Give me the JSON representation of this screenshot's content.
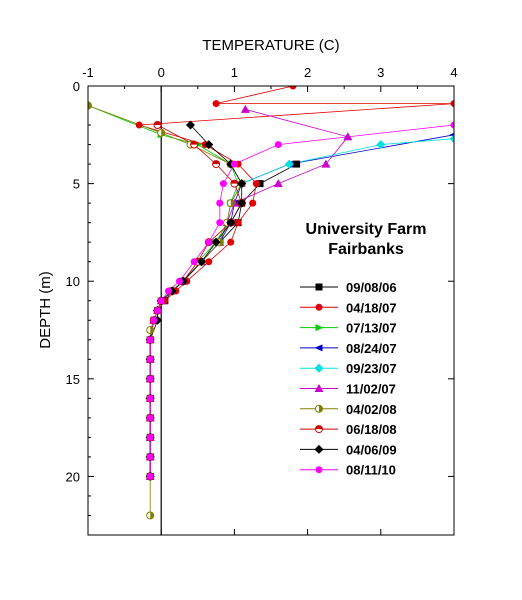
{
  "chart_data": {
    "type": "line",
    "title": "",
    "xlabel": "TEMPERATURE (C)",
    "ylabel": "DEPTH (m)",
    "xlim": [
      -1,
      4
    ],
    "ylim": [
      0,
      23
    ],
    "y_inverted": true,
    "x_axis_position": "top",
    "x_ticks": [
      -1,
      0,
      1,
      2,
      3,
      4
    ],
    "y_ticks": [
      0,
      5,
      10,
      15,
      20
    ],
    "zero_reference_line": true,
    "grid": false,
    "legend_title": [
      "University Farm",
      "Fairbanks"
    ],
    "legend_position": "right",
    "series": [
      {
        "name": "09/08/06",
        "color": "#000000",
        "marker": "square",
        "points": [
          [
            1.85,
            4.0
          ],
          [
            1.35,
            5.0
          ],
          [
            1.1,
            6.0
          ],
          [
            1.05,
            7.0
          ],
          [
            0.8,
            8.0
          ],
          [
            0.55,
            9.0
          ],
          [
            0.3,
            10.0
          ],
          [
            0.15,
            10.5
          ],
          [
            0.05,
            11.0
          ],
          [
            -0.05,
            11.5
          ],
          [
            -0.1,
            12.0
          ],
          [
            -0.15,
            13.0
          ],
          [
            -0.15,
            14.0
          ],
          [
            -0.15,
            15.0
          ],
          [
            -0.15,
            16.0
          ],
          [
            -0.15,
            17.0
          ],
          [
            -0.15,
            18.0
          ],
          [
            -0.15,
            19.0
          ],
          [
            -0.15,
            20.0
          ]
        ]
      },
      {
        "name": "04/18/07",
        "color": "#e00000",
        "marker": "circle",
        "points": [
          [
            1.8,
            0.0
          ],
          [
            0.75,
            0.9
          ],
          [
            4.0,
            0.9
          ],
          [
            -0.3,
            2.0
          ],
          [
            0.6,
            3.0
          ],
          [
            1.05,
            4.0
          ],
          [
            1.3,
            5.0
          ],
          [
            1.25,
            6.0
          ],
          [
            1.05,
            7.0
          ],
          [
            0.95,
            8.0
          ],
          [
            0.65,
            9.0
          ],
          [
            0.35,
            10.0
          ],
          [
            0.2,
            10.5
          ],
          [
            0.05,
            11.0
          ],
          [
            -0.05,
            11.5
          ],
          [
            -0.1,
            12.0
          ],
          [
            -0.15,
            13.0
          ],
          [
            -0.15,
            14.0
          ],
          [
            -0.15,
            15.0
          ],
          [
            -0.15,
            16.0
          ],
          [
            -0.15,
            17.0
          ],
          [
            -0.15,
            18.0
          ],
          [
            -0.15,
            19.0
          ],
          [
            -0.15,
            20.0
          ]
        ]
      },
      {
        "name": "07/13/07",
        "color": "#00cc00",
        "marker": "triangle-right",
        "points": [
          [
            -1.0,
            1.0
          ],
          [
            0.0,
            2.5
          ],
          [
            0.5,
            3.0
          ],
          [
            0.95,
            4.0
          ],
          [
            1.05,
            5.0
          ],
          [
            0.95,
            6.0
          ],
          [
            0.9,
            7.0
          ],
          [
            0.75,
            8.0
          ],
          [
            0.5,
            9.0
          ],
          [
            0.3,
            10.0
          ],
          [
            0.15,
            10.5
          ],
          [
            0.0,
            11.0
          ],
          [
            -0.05,
            11.5
          ],
          [
            -0.1,
            12.0
          ],
          [
            -0.15,
            13.0
          ],
          [
            -0.15,
            14.0
          ],
          [
            -0.15,
            15.0
          ],
          [
            -0.15,
            16.0
          ],
          [
            -0.15,
            17.0
          ],
          [
            -0.15,
            18.0
          ],
          [
            -0.15,
            19.0
          ],
          [
            -0.15,
            20.0
          ]
        ]
      },
      {
        "name": "08/24/07",
        "color": "#0000cc",
        "marker": "triangle-left",
        "points": [
          [
            4.0,
            2.5
          ],
          [
            1.75,
            4.0
          ],
          [
            1.1,
            5.0
          ],
          [
            1.0,
            6.0
          ],
          [
            0.95,
            7.0
          ],
          [
            0.8,
            8.0
          ],
          [
            0.55,
            9.0
          ],
          [
            0.3,
            10.0
          ],
          [
            0.15,
            10.5
          ],
          [
            0.0,
            11.0
          ],
          [
            -0.05,
            11.5
          ],
          [
            -0.1,
            12.0
          ],
          [
            -0.15,
            13.0
          ],
          [
            -0.15,
            14.0
          ],
          [
            -0.15,
            15.0
          ],
          [
            -0.15,
            16.0
          ],
          [
            -0.15,
            17.0
          ],
          [
            -0.15,
            18.0
          ],
          [
            -0.15,
            19.0
          ],
          [
            -0.15,
            20.0
          ]
        ]
      },
      {
        "name": "09/23/07",
        "color": "#00e0e0",
        "marker": "diamond",
        "points": [
          [
            4.0,
            2.7
          ],
          [
            3.0,
            3.0
          ],
          [
            1.75,
            4.0
          ],
          [
            1.1,
            5.0
          ],
          [
            0.95,
            6.0
          ],
          [
            0.9,
            7.0
          ],
          [
            0.8,
            8.0
          ],
          [
            0.55,
            9.0
          ],
          [
            0.3,
            10.0
          ],
          [
            0.15,
            10.5
          ],
          [
            0.0,
            11.0
          ],
          [
            -0.05,
            11.5
          ],
          [
            -0.1,
            12.0
          ],
          [
            -0.15,
            13.0
          ],
          [
            -0.15,
            14.0
          ],
          [
            -0.15,
            15.0
          ],
          [
            -0.15,
            16.0
          ],
          [
            -0.15,
            17.0
          ],
          [
            -0.15,
            18.0
          ],
          [
            -0.15,
            19.0
          ],
          [
            -0.15,
            20.0
          ]
        ]
      },
      {
        "name": "11/02/07",
        "color": "#cc00cc",
        "marker": "triangle-up",
        "points": [
          [
            1.15,
            1.2
          ],
          [
            2.55,
            2.6
          ],
          [
            2.25,
            4.0
          ],
          [
            1.6,
            5.0
          ],
          [
            1.0,
            6.0
          ],
          [
            0.9,
            7.0
          ],
          [
            0.8,
            8.0
          ],
          [
            0.55,
            9.0
          ],
          [
            0.3,
            10.0
          ],
          [
            0.15,
            10.5
          ],
          [
            0.0,
            11.0
          ],
          [
            -0.05,
            11.5
          ],
          [
            -0.1,
            12.0
          ],
          [
            -0.15,
            13.0
          ],
          [
            -0.15,
            14.0
          ],
          [
            -0.15,
            15.0
          ],
          [
            -0.15,
            16.0
          ],
          [
            -0.15,
            17.0
          ],
          [
            -0.15,
            18.0
          ],
          [
            -0.15,
            19.0
          ],
          [
            -0.15,
            20.0
          ]
        ]
      },
      {
        "name": "04/02/08",
        "color": "#808000",
        "marker": "circle-half",
        "points": [
          [
            -1.0,
            1.0
          ],
          [
            0.0,
            2.4
          ],
          [
            0.4,
            3.0
          ],
          [
            0.95,
            4.0
          ],
          [
            1.1,
            5.0
          ],
          [
            0.95,
            6.0
          ],
          [
            0.9,
            7.0
          ],
          [
            0.8,
            8.0
          ],
          [
            0.55,
            9.0
          ],
          [
            0.3,
            10.0
          ],
          [
            0.15,
            10.5
          ],
          [
            0.0,
            11.0
          ],
          [
            -0.05,
            11.5
          ],
          [
            -0.1,
            12.0
          ],
          [
            -0.15,
            12.5
          ],
          [
            -0.15,
            13.0
          ],
          [
            -0.15,
            14.0
          ],
          [
            -0.15,
            15.0
          ],
          [
            -0.15,
            16.0
          ],
          [
            -0.15,
            17.0
          ],
          [
            -0.15,
            18.0
          ],
          [
            -0.15,
            19.0
          ],
          [
            -0.15,
            20.0
          ],
          [
            -0.15,
            22.0
          ]
        ]
      },
      {
        "name": "06/18/08",
        "color": "#d00000",
        "marker": "circle-half-red",
        "points": [
          [
            -0.05,
            2.0
          ],
          [
            0.45,
            3.0
          ],
          [
            0.75,
            4.0
          ],
          [
            1.0,
            5.0
          ],
          [
            1.1,
            6.0
          ],
          [
            0.95,
            7.0
          ],
          [
            0.65,
            8.0
          ],
          [
            0.5,
            9.0
          ],
          [
            0.3,
            10.0
          ],
          [
            0.15,
            10.5
          ],
          [
            0.0,
            11.0
          ],
          [
            -0.05,
            11.5
          ],
          [
            -0.1,
            12.0
          ],
          [
            -0.15,
            13.0
          ],
          [
            -0.15,
            14.0
          ],
          [
            -0.15,
            15.0
          ],
          [
            -0.15,
            16.0
          ],
          [
            -0.15,
            17.0
          ],
          [
            -0.15,
            18.0
          ],
          [
            -0.15,
            19.0
          ],
          [
            -0.15,
            20.0
          ]
        ]
      },
      {
        "name": "04/06/09",
        "color": "#000000",
        "marker": "diamond",
        "points": [
          [
            0.4,
            2.0
          ],
          [
            0.65,
            3.0
          ],
          [
            0.95,
            4.0
          ],
          [
            1.1,
            5.0
          ],
          [
            1.1,
            6.0
          ],
          [
            0.95,
            7.0
          ],
          [
            0.75,
            8.0
          ],
          [
            0.55,
            9.0
          ],
          [
            0.3,
            10.0
          ],
          [
            0.15,
            10.5
          ],
          [
            0.0,
            11.0
          ],
          [
            -0.05,
            11.5
          ],
          [
            -0.05,
            12.0
          ],
          [
            -0.15,
            13.0
          ],
          [
            -0.15,
            14.0
          ],
          [
            -0.15,
            15.0
          ],
          [
            -0.15,
            16.0
          ],
          [
            -0.15,
            17.0
          ],
          [
            -0.15,
            18.0
          ],
          [
            -0.15,
            19.0
          ],
          [
            -0.15,
            20.0
          ]
        ]
      },
      {
        "name": "08/11/10",
        "color": "#ff00ff",
        "marker": "circle",
        "points": [
          [
            4.0,
            2.0
          ],
          [
            1.6,
            3.0
          ],
          [
            1.0,
            4.0
          ],
          [
            0.85,
            5.0
          ],
          [
            0.8,
            6.0
          ],
          [
            0.8,
            7.0
          ],
          [
            0.65,
            8.0
          ],
          [
            0.45,
            9.0
          ],
          [
            0.25,
            10.0
          ],
          [
            0.1,
            10.5
          ],
          [
            0.0,
            11.0
          ],
          [
            -0.05,
            11.5
          ],
          [
            -0.1,
            12.0
          ],
          [
            -0.15,
            13.0
          ],
          [
            -0.15,
            14.0
          ],
          [
            -0.15,
            15.0
          ],
          [
            -0.15,
            16.0
          ],
          [
            -0.15,
            17.0
          ],
          [
            -0.15,
            18.0
          ],
          [
            -0.15,
            19.0
          ],
          [
            -0.15,
            20.0
          ]
        ]
      }
    ]
  }
}
